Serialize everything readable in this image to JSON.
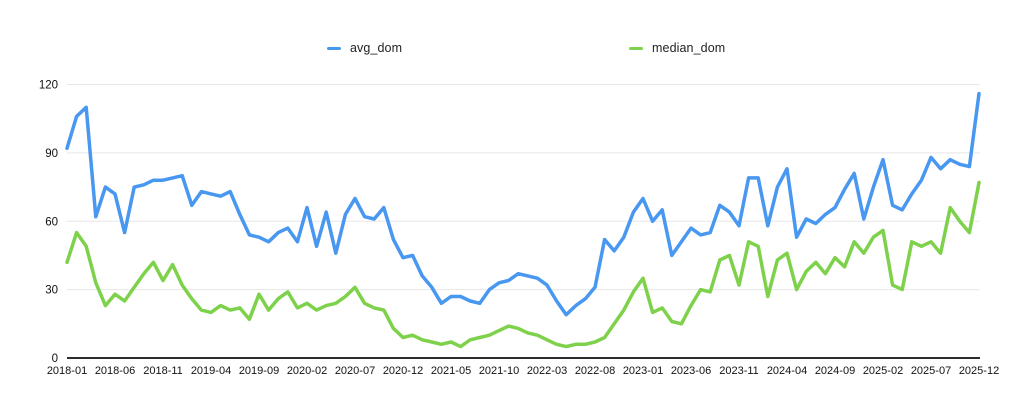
{
  "chart_data": {
    "type": "line",
    "title": "",
    "xlabel": "",
    "ylabel": "",
    "ylim": [
      0,
      120
    ],
    "y_ticks": [
      0,
      30,
      60,
      90,
      120
    ],
    "grid": true,
    "legend_position": "top-center",
    "x_tick_interval": 5,
    "x_tick_labels": [
      "2018-01",
      "2018-06",
      "2018-11",
      "2019-04",
      "2019-09",
      "2020-02",
      "2020-07",
      "2020-12",
      "2021-05",
      "2021-10",
      "2022-03",
      "2022-08",
      "2023-01",
      "2023-06",
      "2023-11",
      "2024-04",
      "2024-09",
      "2025-02",
      "2025-07",
      "2025-12"
    ],
    "x": [
      "2018-01",
      "2018-02",
      "2018-03",
      "2018-04",
      "2018-05",
      "2018-06",
      "2018-07",
      "2018-08",
      "2018-09",
      "2018-10",
      "2018-11",
      "2018-12",
      "2019-01",
      "2019-02",
      "2019-03",
      "2019-04",
      "2019-05",
      "2019-06",
      "2019-07",
      "2019-08",
      "2019-09",
      "2019-10",
      "2019-11",
      "2019-12",
      "2020-01",
      "2020-02",
      "2020-03",
      "2020-04",
      "2020-05",
      "2020-06",
      "2020-07",
      "2020-08",
      "2020-09",
      "2020-10",
      "2020-11",
      "2020-12",
      "2021-01",
      "2021-02",
      "2021-03",
      "2021-04",
      "2021-05",
      "2021-06",
      "2021-07",
      "2021-08",
      "2021-09",
      "2021-10",
      "2021-11",
      "2021-12",
      "2022-01",
      "2022-02",
      "2022-03",
      "2022-04",
      "2022-05",
      "2022-06",
      "2022-07",
      "2022-08",
      "2022-09",
      "2022-10",
      "2022-11",
      "2022-12",
      "2023-01",
      "2023-02",
      "2023-03",
      "2023-04",
      "2023-05",
      "2023-06",
      "2023-07",
      "2023-08",
      "2023-09",
      "2023-10",
      "2023-11",
      "2023-12",
      "2024-01",
      "2024-02",
      "2024-03",
      "2024-04",
      "2024-05",
      "2024-06",
      "2024-07",
      "2024-08",
      "2024-09",
      "2024-10",
      "2024-11",
      "2024-12",
      "2025-01",
      "2025-02",
      "2025-03",
      "2025-04",
      "2025-05",
      "2025-06",
      "2025-07",
      "2025-08",
      "2025-09",
      "2025-10",
      "2025-11",
      "2025-12"
    ],
    "series": [
      {
        "name": "avg_dom",
        "color": "#4897F0",
        "values": [
          92,
          106,
          110,
          62,
          75,
          72,
          55,
          75,
          76,
          78,
          78,
          79,
          80,
          67,
          73,
          72,
          71,
          73,
          63,
          54,
          53,
          51,
          55,
          57,
          51,
          66,
          49,
          64,
          46,
          63,
          70,
          62,
          61,
          66,
          52,
          44,
          45,
          36,
          31,
          24,
          27,
          27,
          25,
          24,
          30,
          33,
          34,
          37,
          36,
          35,
          32,
          25,
          19,
          23,
          26,
          31,
          52,
          47,
          53,
          64,
          70,
          60,
          65,
          45,
          51,
          57,
          54,
          55,
          67,
          64,
          58,
          79,
          79,
          58,
          75,
          83,
          53,
          61,
          59,
          63,
          66,
          74,
          81,
          61,
          75,
          87,
          67,
          65,
          72,
          78,
          88,
          83,
          87,
          85,
          84,
          116
        ]
      },
      {
        "name": "median_dom",
        "color": "#7ED24B",
        "values": [
          42,
          55,
          49,
          33,
          23,
          28,
          25,
          31,
          37,
          42,
          34,
          41,
          32,
          26,
          21,
          20,
          23,
          21,
          22,
          17,
          28,
          21,
          26,
          29,
          22,
          24,
          21,
          23,
          24,
          27,
          31,
          24,
          22,
          21,
          13,
          9,
          10,
          8,
          7,
          6,
          7,
          5,
          8,
          9,
          10,
          12,
          14,
          13,
          11,
          10,
          8,
          6,
          5,
          6,
          6,
          7,
          9,
          15,
          21,
          29,
          35,
          20,
          22,
          16,
          15,
          23,
          30,
          29,
          43,
          45,
          32,
          51,
          49,
          27,
          43,
          46,
          30,
          38,
          42,
          37,
          44,
          40,
          51,
          46,
          53,
          56,
          32,
          30,
          51,
          49,
          51,
          46,
          66,
          60,
          55,
          77
        ]
      }
    ]
  },
  "legend": {
    "avg_label": "avg_dom",
    "median_label": "median_dom"
  },
  "colors": {
    "avg_line": "#4897F0",
    "median_line": "#7ED24B",
    "gridline": "#e7e7e7",
    "axis_line": "#2b2b2b",
    "tick_text": "#111111"
  }
}
